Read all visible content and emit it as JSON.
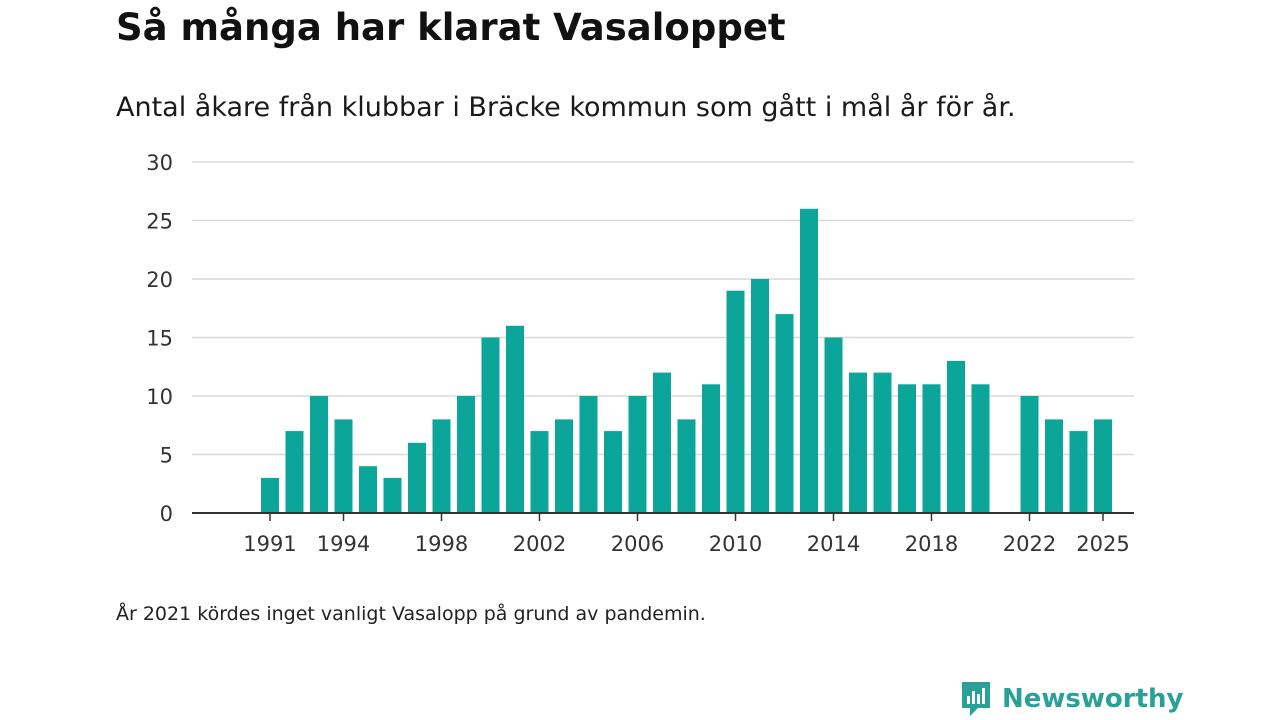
{
  "header": {
    "title": "Så många har klarat Vasaloppet",
    "subtitle": "Antal åkare från klubbar i Bräcke kommun som gått i mål år för år."
  },
  "footer": {
    "note": "År 2021 kördes inget vanligt Vasalopp på grund av pandemin.",
    "brand": "Newsworthy"
  },
  "colors": {
    "bar": "#0ba699",
    "grid": "#d9d9d9",
    "axis": "#333333",
    "brand": "#2aa198"
  },
  "chart_data": {
    "type": "bar",
    "title": "Så många har klarat Vasaloppet",
    "subtitle": "Antal åkare från klubbar i Bräcke kommun som gått i mål år för år.",
    "xlabel": "",
    "ylabel": "",
    "ylim": [
      0,
      30
    ],
    "yticks": [
      "0",
      "5",
      "10",
      "15",
      "20",
      "25",
      "30"
    ],
    "xticks": [
      "1991",
      "1994",
      "1998",
      "2002",
      "2006",
      "2010",
      "2014",
      "2018",
      "2022",
      "2025"
    ],
    "grid": true,
    "legend": "none",
    "categories": [
      1990,
      1991,
      1992,
      1993,
      1994,
      1995,
      1996,
      1997,
      1998,
      1999,
      2000,
      2001,
      2002,
      2003,
      2004,
      2005,
      2006,
      2007,
      2008,
      2009,
      2010,
      2011,
      2012,
      2013,
      2014,
      2015,
      2016,
      2017,
      2018,
      2019,
      2020,
      2021,
      2022,
      2023,
      2024,
      2025
    ],
    "values": [
      null,
      3,
      7,
      10,
      8,
      4,
      3,
      6,
      8,
      10,
      15,
      16,
      7,
      8,
      10,
      7,
      10,
      12,
      8,
      11,
      19,
      20,
      17,
      26,
      15,
      12,
      12,
      11,
      11,
      13,
      11,
      null,
      10,
      8,
      7,
      8
    ]
  }
}
